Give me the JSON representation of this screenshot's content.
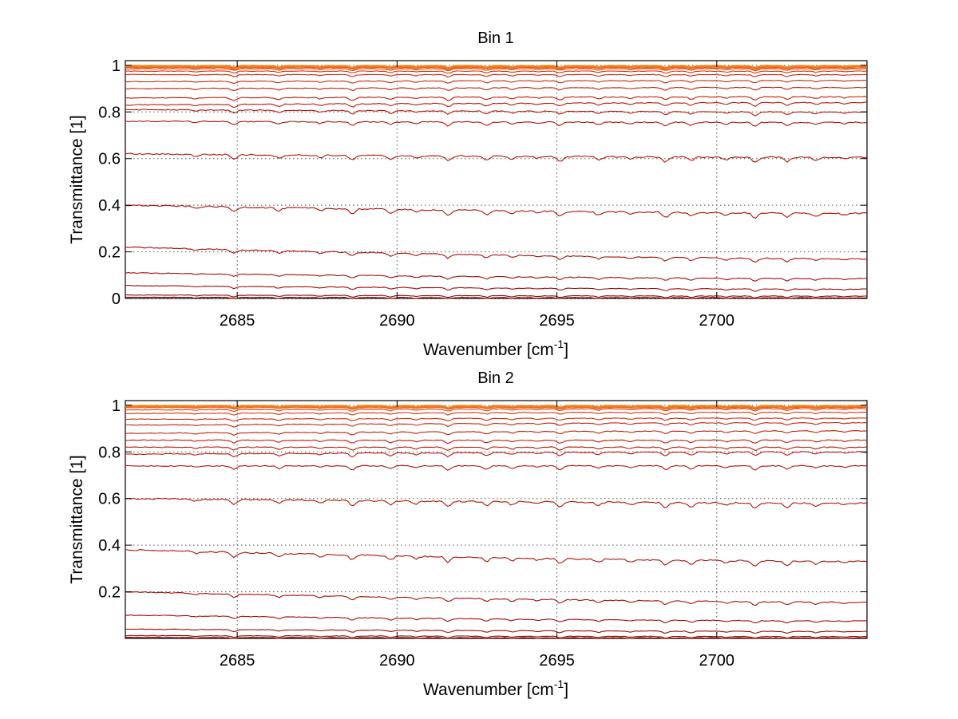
{
  "figure": {
    "background": "#ffffff"
  },
  "chart_data": [
    {
      "type": "line",
      "title": "Bin 1",
      "xlabel": "Wavenumber [cm-1]",
      "xlabel_main": "Wavenumber [cm",
      "xlabel_sup": "-1",
      "xlabel_tail": "]",
      "ylabel": "Transmittance [1]",
      "xlim": [
        2681.5,
        2704.7
      ],
      "ylim": [
        0,
        1.02
      ],
      "xticks": [
        2685,
        2690,
        2695,
        2700
      ],
      "xtick_labels": [
        "2685",
        "2690",
        "2695",
        "2700"
      ],
      "yticks": [
        0,
        0.2,
        0.4,
        0.6,
        0.8,
        1
      ],
      "ytick_labels": [
        "0",
        "0.2",
        "0.4",
        "0.6",
        "0.8",
        "1"
      ],
      "grid": true,
      "series_start": [
        0.998,
        0.995,
        0.99,
        0.985,
        0.975,
        0.96,
        0.93,
        0.9,
        0.86,
        0.83,
        0.81,
        0.76,
        0.62,
        0.4,
        0.22,
        0.11,
        0.055,
        0.015,
        0.005
      ],
      "series_end": [
        0.998,
        0.995,
        0.99,
        0.985,
        0.975,
        0.96,
        0.935,
        0.905,
        0.865,
        0.84,
        0.8,
        0.755,
        0.605,
        0.365,
        0.17,
        0.085,
        0.04,
        0.01,
        0.003
      ],
      "series_colors": [
        "#f2a12b",
        "#f07a1c",
        "#ea5a12",
        "#e2440e",
        "#d8340c",
        "#cf2a0a",
        "#c8240a",
        "#c41e08",
        "#c01a08",
        "#bc1808",
        "#b81608",
        "#b41408",
        "#b01208",
        "#ac1008",
        "#a80e08",
        "#a40c06",
        "#a00a06",
        "#960806",
        "#8a0404"
      ]
    },
    {
      "type": "line",
      "title": "Bin 2",
      "xlabel": "Wavenumber [cm-1]",
      "xlabel_main": "Wavenumber [cm",
      "xlabel_sup": "-1",
      "xlabel_tail": "]",
      "ylabel": "Transmittance [1]",
      "xlim": [
        2681.5,
        2704.7
      ],
      "ylim": [
        0,
        1.02
      ],
      "xticks": [
        2685,
        2690,
        2695,
        2700
      ],
      "xtick_labels": [
        "2685",
        "2690",
        "2695",
        "2700"
      ],
      "yticks": [
        0.2,
        0.4,
        0.6,
        0.8,
        1
      ],
      "ytick_labels": [
        "0.2",
        "0.4",
        "0.6",
        "0.8",
        "1"
      ],
      "grid": true,
      "series_start": [
        0.998,
        0.995,
        0.99,
        0.98,
        0.965,
        0.94,
        0.915,
        0.88,
        0.85,
        0.82,
        0.79,
        0.74,
        0.6,
        0.38,
        0.2,
        0.1,
        0.04,
        0.012,
        0.004
      ],
      "series_end": [
        0.998,
        0.995,
        0.99,
        0.985,
        0.97,
        0.945,
        0.925,
        0.89,
        0.85,
        0.82,
        0.8,
        0.74,
        0.58,
        0.33,
        0.155,
        0.075,
        0.03,
        0.008,
        0.002
      ],
      "series_colors": [
        "#f2a12b",
        "#f07a1c",
        "#ea5a12",
        "#e2440e",
        "#d8340c",
        "#cf2a0a",
        "#c8240a",
        "#c41e08",
        "#c01a08",
        "#bc1808",
        "#b81608",
        "#b41408",
        "#b01208",
        "#ac1008",
        "#a80e08",
        "#a40c06",
        "#a00a06",
        "#960806",
        "#8a0404"
      ]
    }
  ]
}
